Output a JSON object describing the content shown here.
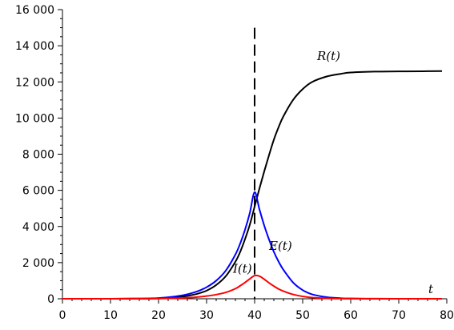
{
  "chart_data": {
    "type": "line",
    "title": "",
    "xlabel": "t",
    "ylabel": "",
    "xlim": [
      0,
      80
    ],
    "ylim": [
      0,
      16000
    ],
    "grid": false,
    "x_ticks": [
      {
        "value": 0,
        "label": "0"
      },
      {
        "value": 10,
        "label": "10"
      },
      {
        "value": 20,
        "label": "20"
      },
      {
        "value": 30,
        "label": "30"
      },
      {
        "value": 40,
        "label": "40"
      },
      {
        "value": 50,
        "label": "50"
      },
      {
        "value": 60,
        "label": "60"
      },
      {
        "value": 70,
        "label": "70"
      },
      {
        "value": 80,
        "label": "80"
      }
    ],
    "y_ticks": [
      {
        "value": 0,
        "label": "0"
      },
      {
        "value": 2000,
        "label": "2 000"
      },
      {
        "value": 4000,
        "label": "4 000"
      },
      {
        "value": 6000,
        "label": "6 000"
      },
      {
        "value": 8000,
        "label": "8 000"
      },
      {
        "value": 10000,
        "label": "10 000"
      },
      {
        "value": 12000,
        "label": "12 000"
      },
      {
        "value": 14000,
        "label": "14 000"
      },
      {
        "value": 16000,
        "label": "16 000"
      }
    ],
    "vertical_line": {
      "x": 40,
      "y_top": 15000,
      "style": "dashed",
      "color": "#000000"
    },
    "series": [
      {
        "name": "R(t)",
        "color": "#000000",
        "label_at": [
          53,
          13200
        ],
        "x": [
          0,
          5,
          10,
          15,
          20,
          25,
          28,
          30,
          32,
          34,
          36,
          37,
          38,
          39,
          40,
          41,
          42,
          43,
          44,
          45,
          46,
          48,
          50,
          52,
          55,
          58,
          60,
          65,
          70,
          75,
          79
        ],
        "values": [
          0,
          0,
          0,
          5,
          25,
          120,
          270,
          450,
          760,
          1250,
          2050,
          2600,
          3300,
          4100,
          5100,
          6100,
          7050,
          7950,
          8800,
          9500,
          10100,
          11000,
          11600,
          12000,
          12300,
          12450,
          12520,
          12570,
          12580,
          12590,
          12600
        ]
      },
      {
        "name": "E(t)",
        "color": "#0000ff",
        "label_at": [
          43,
          2700
        ],
        "x": [
          0,
          5,
          10,
          15,
          20,
          25,
          28,
          30,
          32,
          34,
          36,
          37,
          38,
          39,
          40,
          41,
          42,
          43,
          44,
          45,
          46,
          48,
          50,
          52,
          55,
          58,
          60,
          65,
          70,
          75,
          79
        ],
        "values": [
          0,
          0,
          0,
          10,
          40,
          190,
          400,
          640,
          1000,
          1560,
          2450,
          3060,
          3820,
          4750,
          5900,
          4950,
          4050,
          3280,
          2600,
          2050,
          1600,
          900,
          480,
          240,
          90,
          30,
          15,
          3,
          0,
          0,
          0
        ]
      },
      {
        "name": "I(t)",
        "color": "#ff0000",
        "label_at": [
          35.5,
          1450
        ],
        "x": [
          0,
          5,
          10,
          15,
          20,
          25,
          28,
          30,
          32,
          34,
          36,
          37,
          38,
          39,
          40,
          41,
          42,
          43,
          44,
          45,
          46,
          48,
          50,
          52,
          55,
          58,
          60,
          65,
          70,
          75,
          79
        ],
        "values": [
          0,
          0,
          0,
          3,
          10,
          45,
          95,
          150,
          230,
          350,
          560,
          720,
          900,
          1100,
          1280,
          1250,
          1080,
          880,
          700,
          540,
          420,
          240,
          130,
          65,
          25,
          8,
          4,
          1,
          0,
          0,
          0
        ]
      }
    ]
  }
}
